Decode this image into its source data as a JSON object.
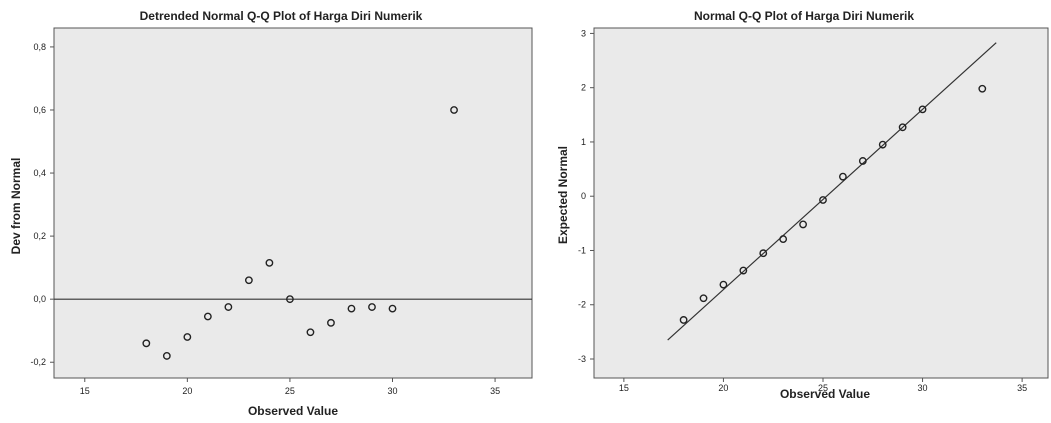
{
  "chart_data": [
    {
      "type": "scatter",
      "title": "Detrended Normal Q-Q Plot of Harga Diri Numerik",
      "xlabel": "Observed Value",
      "ylabel": "Dev from Normal",
      "xlim": [
        13.5,
        36.8
      ],
      "ylim": [
        -0.25,
        0.86
      ],
      "x_ticks": [
        15,
        20,
        25,
        30,
        35
      ],
      "y_ticks": [
        -0.2,
        0.0,
        0.2,
        0.4,
        0.6,
        0.8
      ],
      "x_tick_labels": [
        "15",
        "20",
        "25",
        "30",
        "35"
      ],
      "y_tick_labels": [
        "-0,2",
        "0,0",
        "0,2",
        "0,4",
        "0,6",
        "0,8"
      ],
      "reference_line": {
        "y": 0
      },
      "x": [
        18,
        19,
        20,
        21,
        22,
        23,
        24,
        25,
        26,
        27,
        28,
        29,
        30,
        33
      ],
      "y": [
        -0.14,
        -0.18,
        -0.12,
        -0.055,
        -0.025,
        0.06,
        0.115,
        0.0,
        -0.105,
        -0.075,
        -0.03,
        -0.025,
        -0.03,
        0.6
      ]
    },
    {
      "type": "scatter",
      "title": "Normal Q-Q Plot of Harga Diri Numerik",
      "xlabel": "Observed Value",
      "ylabel": "Expected Normal",
      "xlim": [
        13.5,
        36.3
      ],
      "ylim": [
        -3.35,
        3.1
      ],
      "x_ticks": [
        15,
        20,
        25,
        30,
        35
      ],
      "y_ticks": [
        -3,
        -2,
        -1,
        0,
        1,
        2,
        3
      ],
      "x_tick_labels": [
        "15",
        "20",
        "25",
        "30",
        "35"
      ],
      "y_tick_labels": [
        "-3",
        "-2",
        "-1",
        "0",
        "1",
        "2",
        "3"
      ],
      "reference_line": {
        "x": [
          17.2,
          33.7
        ],
        "y": [
          -2.65,
          2.83
        ]
      },
      "x": [
        18,
        19,
        20,
        21,
        22,
        23,
        24,
        25,
        26,
        27,
        28,
        29,
        30,
        33
      ],
      "y": [
        -2.28,
        -1.88,
        -1.63,
        -1.37,
        -1.05,
        -0.79,
        -0.52,
        -0.07,
        0.36,
        0.65,
        0.95,
        1.27,
        1.6,
        1.98
      ]
    }
  ]
}
